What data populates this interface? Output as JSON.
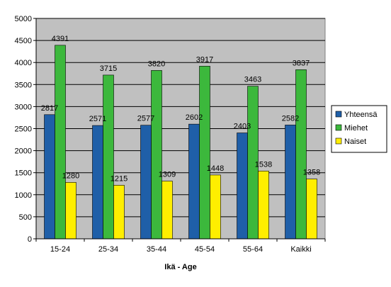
{
  "chart_data": {
    "type": "bar",
    "title": "",
    "xlabel": "Ikä - Age",
    "ylabel": "",
    "categories": [
      "15-24",
      "25-34",
      "35-44",
      "45-54",
      "55-64",
      "Kaikki"
    ],
    "series": [
      {
        "name": "Yhteensä",
        "color": "#1f5fa8",
        "values": [
          2817,
          2571,
          2577,
          2602,
          2403,
          2582
        ]
      },
      {
        "name": "Miehet",
        "color": "#3cb83c",
        "values": [
          4391,
          3715,
          3820,
          3917,
          3463,
          3837
        ]
      },
      {
        "name": "Naiset",
        "color": "#ffee00",
        "values": [
          1280,
          1215,
          1309,
          1448,
          1538,
          1358
        ]
      }
    ],
    "ylim": [
      0,
      5000
    ],
    "yticks": [
      0,
      500,
      1000,
      1500,
      2000,
      2500,
      3000,
      3500,
      4000,
      4500,
      5000
    ],
    "grid": true,
    "plot_background": "#c0c0c0",
    "legend_position": "right"
  }
}
